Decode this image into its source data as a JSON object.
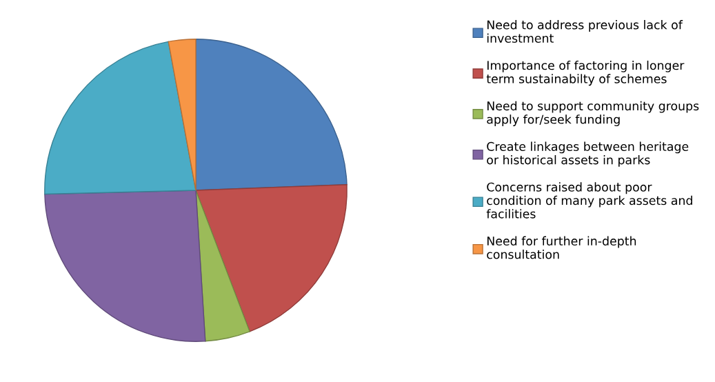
{
  "chart_data": {
    "type": "pie",
    "categories": [
      "Need to address previous lack of investment",
      "Importance of factoring in longer term sustainabilty of schemes",
      "Need to support community groups apply for/seek funding",
      "Create linkages between heritage or historical assets in parks",
      "Concerns raised about poor condition of many park assets and facilities",
      "Need for further in-depth consultation"
    ],
    "values": [
      24.4,
      19.8,
      4.8,
      25.6,
      22.5,
      2.9
    ],
    "colors": [
      "#4f81bd",
      "#c0504d",
      "#9bbb59",
      "#8064a2",
      "#4bacc6",
      "#f79646"
    ],
    "legend": "right"
  }
}
